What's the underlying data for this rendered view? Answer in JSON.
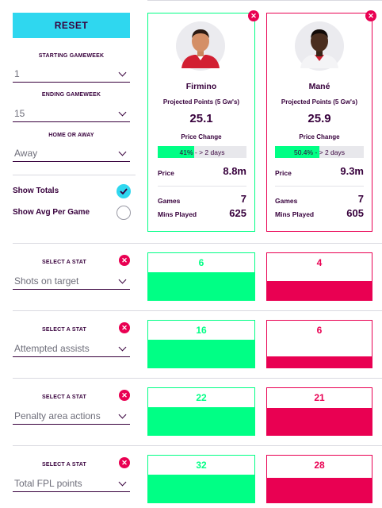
{
  "controls": {
    "reset_label": "RESET",
    "starting_gameweek": {
      "label": "STARTING GAMEWEEK",
      "value": "1"
    },
    "ending_gameweek": {
      "label": "ENDING GAMEWEEK",
      "value": "15"
    },
    "home_or_away": {
      "label": "HOME OR AWAY",
      "value": "Away"
    },
    "show_totals": {
      "label": "Show Totals",
      "checked": true
    },
    "show_avg": {
      "label": "Show Avg Per Game",
      "checked": false
    }
  },
  "players": [
    {
      "name": "Firmino",
      "projected_label": "Projected Points (5 Gw's)",
      "projected_value": "25.1",
      "price_change_label": "Price Change",
      "price_change_text": "41% - > 2 days",
      "price_change_percent": 41,
      "price_label": "Price",
      "price_value": "8.8m",
      "games_label": "Games",
      "games_value": "7",
      "mins_label": "Mins Played",
      "mins_value": "625",
      "color": "#00ff85"
    },
    {
      "name": "Mané",
      "projected_label": "Projected Points (5 Gw's)",
      "projected_value": "25.9",
      "price_change_label": "Price Change",
      "price_change_text": "50.4% - > 2 days",
      "price_change_percent": 50.4,
      "price_label": "Price",
      "price_value": "9.3m",
      "games_label": "Games",
      "games_value": "7",
      "mins_label": "Mins Played",
      "mins_value": "605",
      "color": "#e90052"
    }
  ],
  "stats": [
    {
      "label": "SELECT A STAT",
      "selected": "Shots on target",
      "player1": "6",
      "player2": "4",
      "player1_fill": 0.6,
      "player2_fill": 0.4
    },
    {
      "label": "SELECT A STAT",
      "selected": "Attempted assists",
      "player1": "16",
      "player2": "6",
      "player1_fill": 0.6,
      "player2_fill": 0.23
    },
    {
      "label": "SELECT A STAT",
      "selected": "Penalty area actions",
      "player1": "22",
      "player2": "21",
      "player1_fill": 0.6,
      "player2_fill": 0.57
    },
    {
      "label": "SELECT A STAT",
      "selected": "Total FPL points",
      "player1": "32",
      "player2": "28",
      "player1_fill": 0.6,
      "player2_fill": 0.52
    }
  ],
  "colors": {
    "accent": "#2fd7ef",
    "green": "#00ff85",
    "red": "#e90052",
    "purple": "#37003c"
  }
}
